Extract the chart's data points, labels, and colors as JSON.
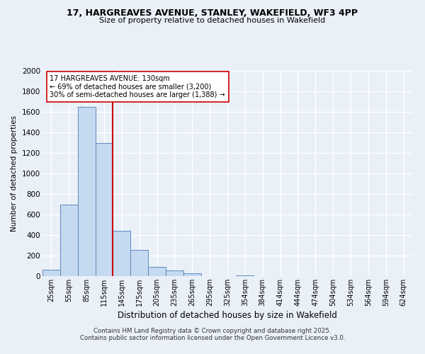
{
  "title1": "17, HARGREAVES AVENUE, STANLEY, WAKEFIELD, WF3 4PP",
  "title2": "Size of property relative to detached houses in Wakefield",
  "xlabel": "Distribution of detached houses by size in Wakefield",
  "ylabel": "Number of detached properties",
  "bar_labels": [
    "25sqm",
    "55sqm",
    "85sqm",
    "115sqm",
    "145sqm",
    "175sqm",
    "205sqm",
    "235sqm",
    "265sqm",
    "295sqm",
    "325sqm",
    "354sqm",
    "384sqm",
    "414sqm",
    "444sqm",
    "474sqm",
    "504sqm",
    "534sqm",
    "564sqm",
    "594sqm",
    "624sqm"
  ],
  "bar_values": [
    65,
    700,
    1650,
    1300,
    440,
    255,
    90,
    55,
    25,
    0,
    0,
    5,
    0,
    0,
    0,
    0,
    0,
    0,
    0,
    0,
    0
  ],
  "bar_color": "#c5d9f0",
  "bar_edgecolor": "#5a8abf",
  "property_bin_index": 3.5,
  "line_color": "#cc0000",
  "annotation_title": "17 HARGREAVES AVENUE: 130sqm",
  "annotation_line1": "← 69% of detached houses are smaller (3,200)",
  "annotation_line2": "30% of semi-detached houses are larger (1,388) →",
  "annotation_box_facecolor": "#ffffff",
  "annotation_box_edgecolor": "#cc0000",
  "ylim": [
    0,
    2000
  ],
  "yticks": [
    0,
    200,
    400,
    600,
    800,
    1000,
    1200,
    1400,
    1600,
    1800,
    2000
  ],
  "footer1": "Contains HM Land Registry data © Crown copyright and database right 2025.",
  "footer2": "Contains public sector information licensed under the Open Government Licence v3.0.",
  "bg_color": "#eaf0f8",
  "grid_color": "#ffffff"
}
